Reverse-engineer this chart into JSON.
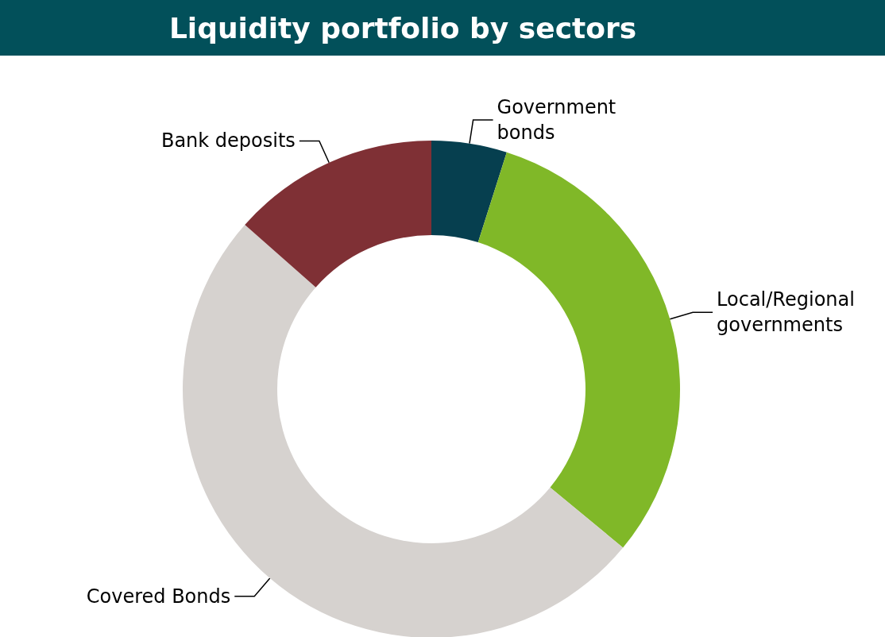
{
  "chart_data": {
    "type": "donut",
    "title": "Liquidity portfolio by sectors",
    "categories": [
      "Government bonds",
      "Local/Regional governments",
      "Covered Bonds",
      "Bank deposits"
    ],
    "values": [
      4.9,
      31.1,
      50.5,
      13.5
    ],
    "colors": [
      "#063f4f",
      "#80b828",
      "#d6d2cf",
      "#7f3035"
    ],
    "legend": false
  }
}
